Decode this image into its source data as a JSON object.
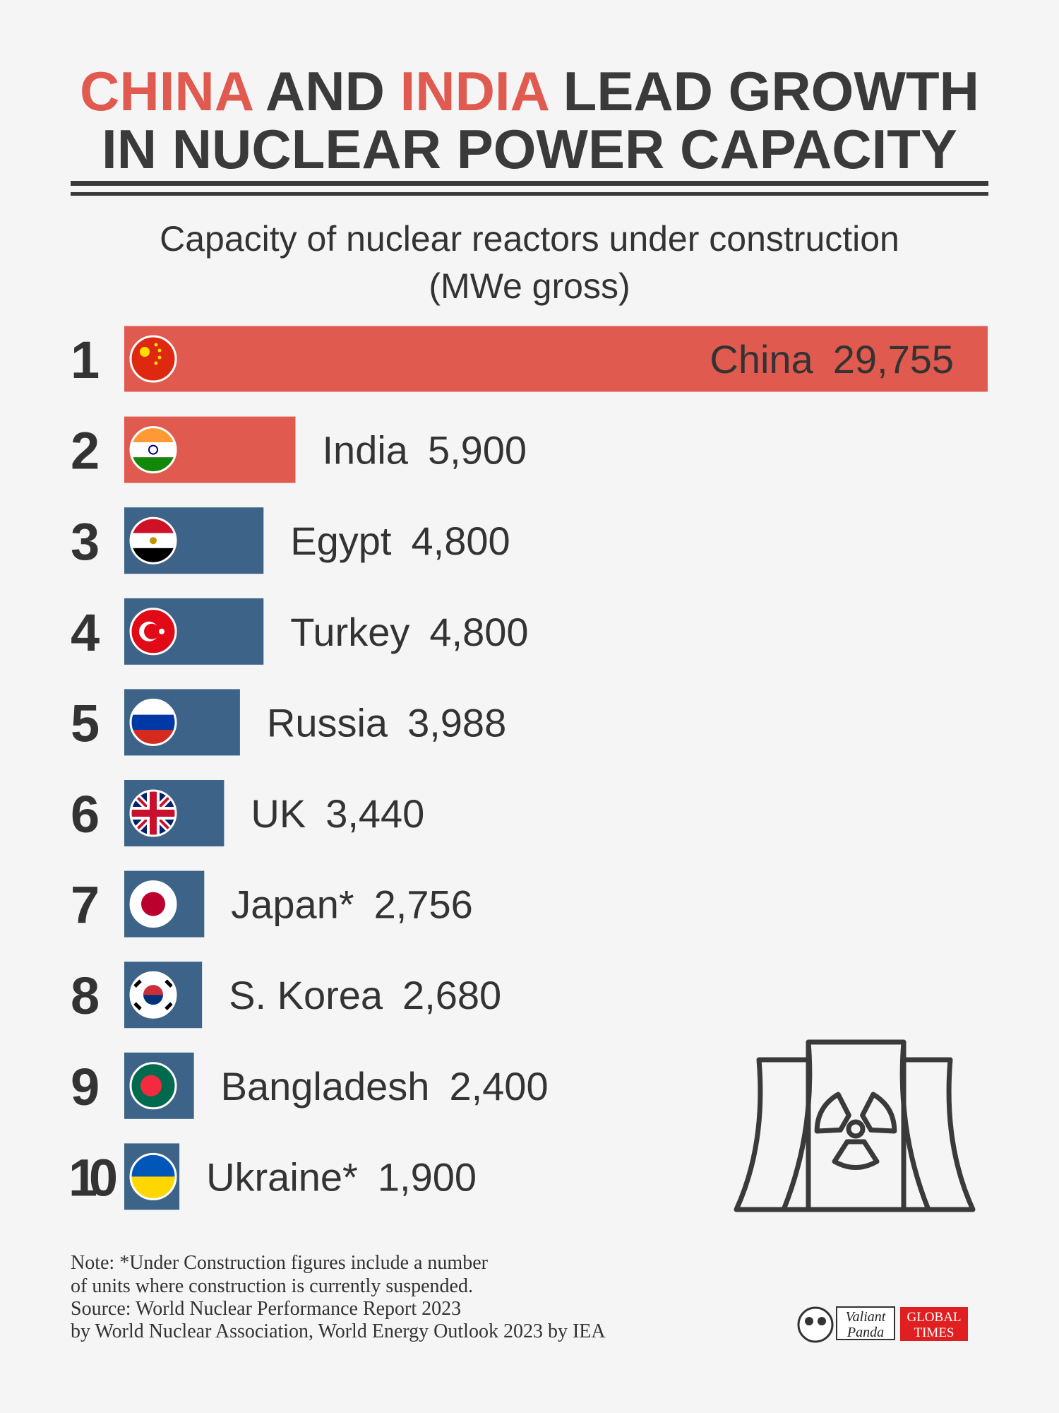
{
  "chart_data": {
    "type": "bar",
    "title": {
      "line1": [
        {
          "text": "CHINA",
          "color": "#e05a50"
        },
        {
          "text": " AND ",
          "color": "#3a3a3a"
        },
        {
          "text": "INDIA",
          "color": "#e05a50"
        },
        {
          "text": " LEAD GROWTH",
          "color": "#3a3a3a"
        }
      ],
      "line2": "IN NUCLEAR POWER CAPACITY"
    },
    "subtitle": [
      "Capacity of nuclear reactors under construction",
      "(MWe gross)"
    ],
    "ranks": [
      1,
      2,
      3,
      4,
      5,
      6,
      7,
      8,
      9,
      10
    ],
    "categories": [
      "China",
      "India",
      "Egypt",
      "Turkey",
      "Russia",
      "UK",
      "Japan*",
      "S. Korea",
      "Bangladesh",
      "Ukraine*"
    ],
    "values": [
      29755,
      5900,
      4800,
      4800,
      3988,
      3440,
      2756,
      2680,
      2400,
      1900
    ],
    "value_labels": [
      "29,755",
      "5,900",
      "4,800",
      "4,800",
      "3,988",
      "3,440",
      "2,756",
      "2,680",
      "2,400",
      "1,900"
    ],
    "colors": [
      "#e05a50",
      "#e05a50",
      "#3e6389",
      "#3e6389",
      "#3e6389",
      "#3e6389",
      "#3e6389",
      "#3e6389",
      "#3e6389",
      "#3e6389"
    ]
  },
  "notes": [
    "Note: *Under Construction figures include a number",
    "of units where construction is currently suspended.",
    "Source: World Nuclear Performance Report 2023",
    "by World Nuclear Association, World Energy Outlook 2023 by IEA"
  ],
  "logos": [
    "Valiant",
    "Panda",
    "GLOBAL",
    "TIMES"
  ]
}
